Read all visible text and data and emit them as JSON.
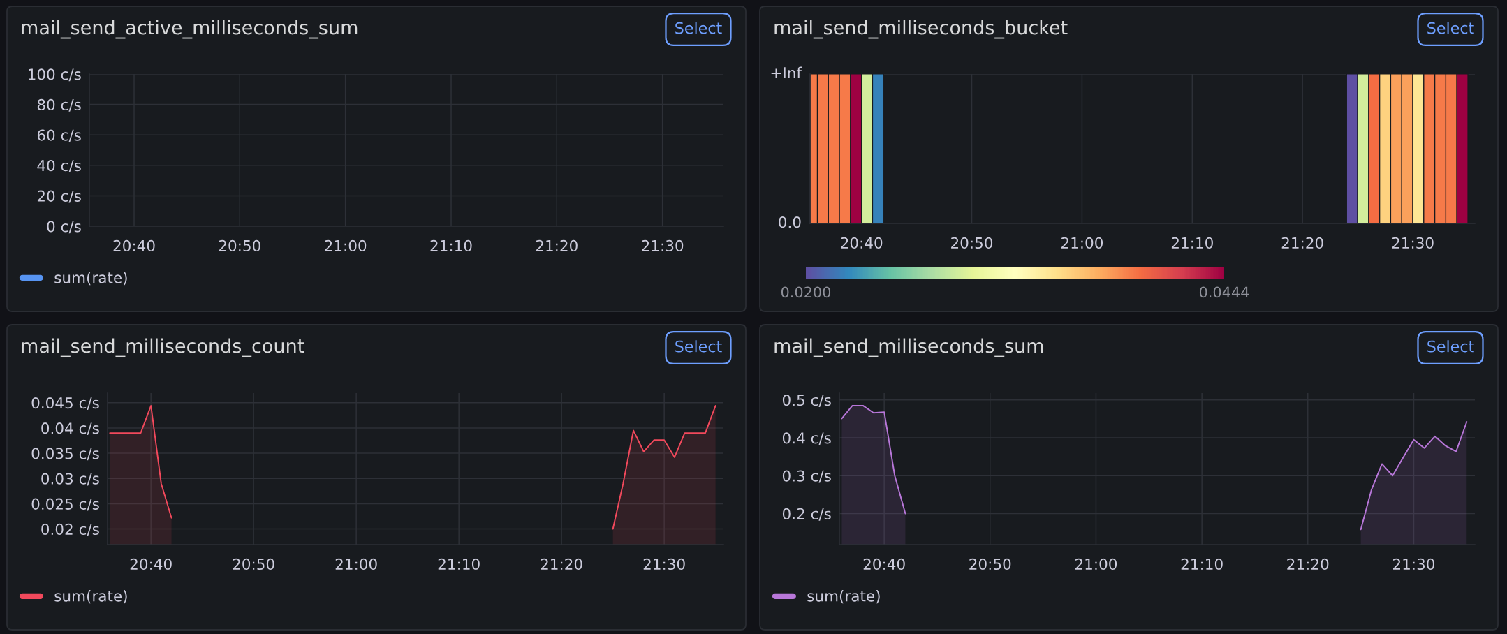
{
  "chart_data": [
    {
      "type": "line",
      "title": "mail_send_active_milliseconds_sum",
      "annotations": [
        "Select"
      ],
      "x": [
        20.6,
        20.6167,
        20.6333,
        20.65,
        20.6667,
        20.6833,
        20.7,
        20.7167,
        21.4167,
        21.4333,
        21.45,
        21.4667,
        21.4833,
        21.5,
        21.5167,
        21.5333,
        21.55,
        21.5667,
        21.5833
      ],
      "series": [
        {
          "name": "sum(rate)",
          "color": "#5794f2",
          "values": [
            0,
            0,
            0,
            0,
            0,
            0,
            0,
            null,
            0,
            0,
            0,
            0,
            0,
            0,
            0,
            0,
            0,
            0,
            0
          ]
        }
      ],
      "xlim": [
        20.5962,
        21.5962
      ],
      "xticks": [
        {
          "value": 20.6667,
          "label": "20:40"
        },
        {
          "value": 20.8333,
          "label": "20:50"
        },
        {
          "value": 21,
          "label": "21:00"
        },
        {
          "value": 21.1667,
          "label": "21:10"
        },
        {
          "value": 21.3333,
          "label": "21:20"
        },
        {
          "value": 21.5,
          "label": "21:30"
        }
      ],
      "ylim": [
        0,
        100
      ],
      "yticks": [
        {
          "value": 0,
          "label": "0 c/s"
        },
        {
          "value": 20,
          "label": "20 c/s"
        },
        {
          "value": 40,
          "label": "40 c/s"
        },
        {
          "value": 60,
          "label": "60 c/s"
        },
        {
          "value": 80,
          "label": "80 c/s"
        },
        {
          "value": 100,
          "label": "100 c/s"
        }
      ],
      "grid": true,
      "legend": "bottom"
    },
    {
      "type": "heatmap",
      "title": "mail_send_milliseconds_bucket",
      "annotations": [
        "Select",
        "+Inf",
        "0.0"
      ],
      "x": [
        20.5917,
        20.6083,
        20.625,
        20.6417,
        20.6583,
        20.675,
        20.6917,
        20.7083,
        20.725,
        20.7417,
        20.7583,
        20.775,
        20.7917,
        20.8083,
        20.825,
        20.8417,
        20.8583,
        20.875,
        20.8917,
        20.9083,
        20.925,
        20.9417,
        20.9583,
        20.975,
        20.9917,
        21.0083,
        21.025,
        21.0417,
        21.0583,
        21.075,
        21.0917,
        21.1083,
        21.125,
        21.1417,
        21.1583,
        21.175,
        21.1917,
        21.2083,
        21.225,
        21.2417,
        21.2583,
        21.275,
        21.2917,
        21.3083,
        21.325,
        21.3417,
        21.3583,
        21.375,
        21.3917,
        21.4083,
        21.425,
        21.4417,
        21.4583,
        21.475,
        21.4917,
        21.5083,
        21.525,
        21.5417,
        21.5583,
        21.575
      ],
      "y_categories": [
        null
      ],
      "cells": [
        [
          0.039,
          0.039,
          0.039,
          0.039,
          0.0444,
          0.029,
          0.0222,
          null,
          null,
          null,
          null,
          null,
          null,
          null,
          null,
          null,
          null,
          null,
          null,
          null,
          null,
          null,
          null,
          null,
          null,
          null,
          null,
          null,
          null,
          null,
          null,
          null,
          null,
          null,
          null,
          null,
          null,
          null,
          null,
          null,
          null,
          null,
          null,
          null,
          null,
          null,
          null,
          null,
          null,
          0.02,
          0.029,
          0.0395,
          0.0353,
          0.0376,
          0.0376,
          0.0342,
          0.039,
          0.039,
          0.039,
          0.0444
        ]
      ],
      "xlim": [
        20.5889,
        21.5939
      ],
      "xticks": [
        {
          "value": 20.6667,
          "label": "20:40"
        },
        {
          "value": 20.8333,
          "label": "20:50"
        },
        {
          "value": 21,
          "label": "21:00"
        },
        {
          "value": 21.1667,
          "label": "21:10"
        },
        {
          "value": 21.3333,
          "label": "21:20"
        },
        {
          "value": 21.5,
          "label": "21:30"
        }
      ],
      "clim": [
        0.02,
        0.0444
      ],
      "cticks": [
        {
          "value": 0.02,
          "label": "0.0200"
        },
        {
          "value": 0.0444,
          "label": "0.0444"
        }
      ],
      "grid": true
    },
    {
      "type": "area",
      "title": "mail_send_milliseconds_count",
      "annotations": [
        "Select"
      ],
      "x": [
        20.6,
        20.6167,
        20.6333,
        20.65,
        20.6667,
        20.6833,
        20.7,
        20.7167,
        21.4167,
        21.4333,
        21.45,
        21.4667,
        21.4833,
        21.5,
        21.5167,
        21.5333,
        21.55,
        21.5667,
        21.5833
      ],
      "series": [
        {
          "name": "sum(rate)",
          "color": "#f2495c",
          "values": [
            0.039,
            0.039,
            0.039,
            0.039,
            0.0444,
            0.029,
            0.0222,
            null,
            0.02,
            0.029,
            0.0395,
            0.0353,
            0.0376,
            0.0376,
            0.0342,
            0.039,
            0.039,
            0.039,
            0.0444
          ]
        }
      ],
      "xlim": [
        20.5962,
        21.5962
      ],
      "xticks": [
        {
          "value": 20.6667,
          "label": "20:40"
        },
        {
          "value": 20.8333,
          "label": "20:50"
        },
        {
          "value": 21,
          "label": "21:00"
        },
        {
          "value": 21.1667,
          "label": "21:10"
        },
        {
          "value": 21.3333,
          "label": "21:20"
        },
        {
          "value": 21.5,
          "label": "21:30"
        }
      ],
      "ylim": [
        0.0169,
        0.0469
      ],
      "yticks": [
        {
          "value": 0.02,
          "label": "0.02 c/s"
        },
        {
          "value": 0.025,
          "label": "0.025 c/s"
        },
        {
          "value": 0.03,
          "label": "0.03 c/s"
        },
        {
          "value": 0.035,
          "label": "0.035 c/s"
        },
        {
          "value": 0.04,
          "label": "0.04 c/s"
        },
        {
          "value": 0.045,
          "label": "0.045 c/s"
        }
      ],
      "grid": true,
      "legend": "bottom"
    },
    {
      "type": "area",
      "title": "mail_send_milliseconds_sum",
      "annotations": [
        "Select"
      ],
      "x": [
        20.6,
        20.6167,
        20.6333,
        20.65,
        20.6667,
        20.6833,
        20.7,
        20.7167,
        21.4167,
        21.4333,
        21.45,
        21.4667,
        21.4833,
        21.5,
        21.5167,
        21.5333,
        21.55,
        21.5667,
        21.5833
      ],
      "series": [
        {
          "name": "sum(rate)",
          "color": "#b877d9",
          "values": [
            0.451,
            0.485,
            0.485,
            0.466,
            0.468,
            0.3,
            0.2,
            null,
            0.158,
            0.262,
            0.331,
            0.3,
            0.348,
            0.395,
            0.373,
            0.404,
            0.379,
            0.364,
            0.442
          ]
        }
      ],
      "xlim": [
        20.5962,
        21.5962
      ],
      "xticks": [
        {
          "value": 20.6667,
          "label": "20:40"
        },
        {
          "value": 20.8333,
          "label": "20:50"
        },
        {
          "value": 21,
          "label": "21:00"
        },
        {
          "value": 21.1667,
          "label": "21:10"
        },
        {
          "value": 21.3333,
          "label": "21:20"
        },
        {
          "value": 21.5,
          "label": "21:30"
        }
      ],
      "ylim": [
        0.118,
        0.518
      ],
      "yticks": [
        {
          "value": 0.2,
          "label": "0.2 c/s"
        },
        {
          "value": 0.3,
          "label": "0.3 c/s"
        },
        {
          "value": 0.4,
          "label": "0.4 c/s"
        },
        {
          "value": 0.5,
          "label": "0.5 c/s"
        }
      ],
      "grid": true,
      "legend": "bottom"
    }
  ]
}
